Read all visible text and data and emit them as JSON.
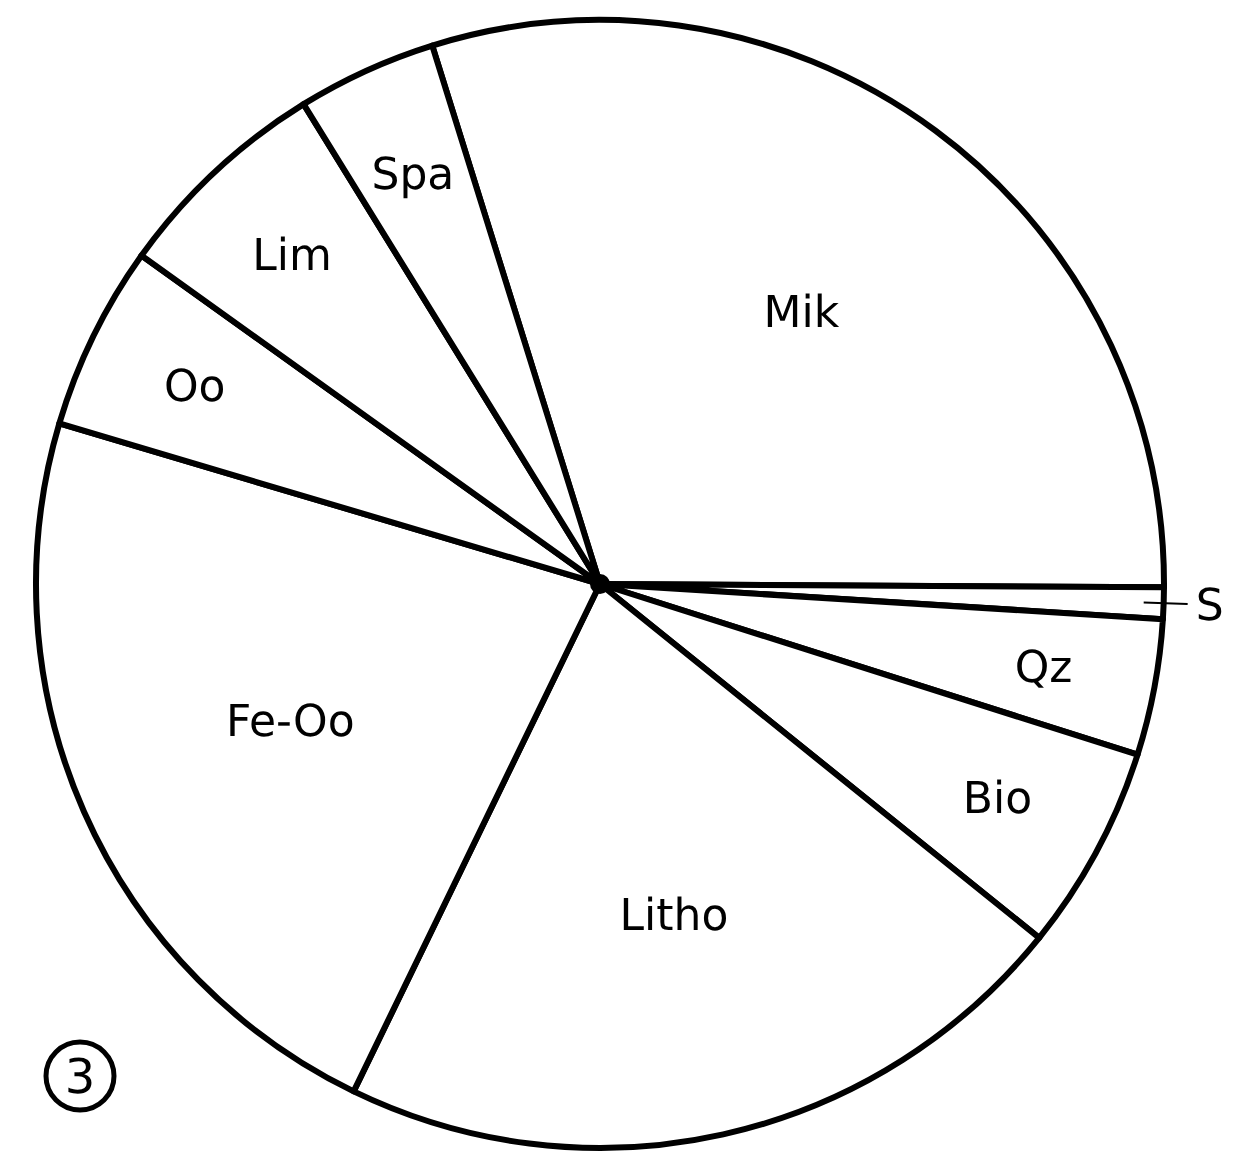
{
  "chart_data": {
    "type": "pie",
    "categories": [
      "Mik",
      "S",
      "Qz",
      "Bio",
      "Litho",
      "Fe-Oo",
      "Oo",
      "Lim",
      "Spa"
    ],
    "values": [
      29.9,
      0.9,
      3.9,
      5.9,
      21.4,
      22.4,
      5.3,
      6.3,
      4.0
    ],
    "colors": [
      "#ffffff",
      "#ffffff",
      "#ffffff",
      "#ffffff",
      "#ffffff",
      "#ffffff",
      "#ffffff",
      "#ffffff",
      "#ffffff"
    ],
    "annotations": [
      "3"
    ]
  }
}
